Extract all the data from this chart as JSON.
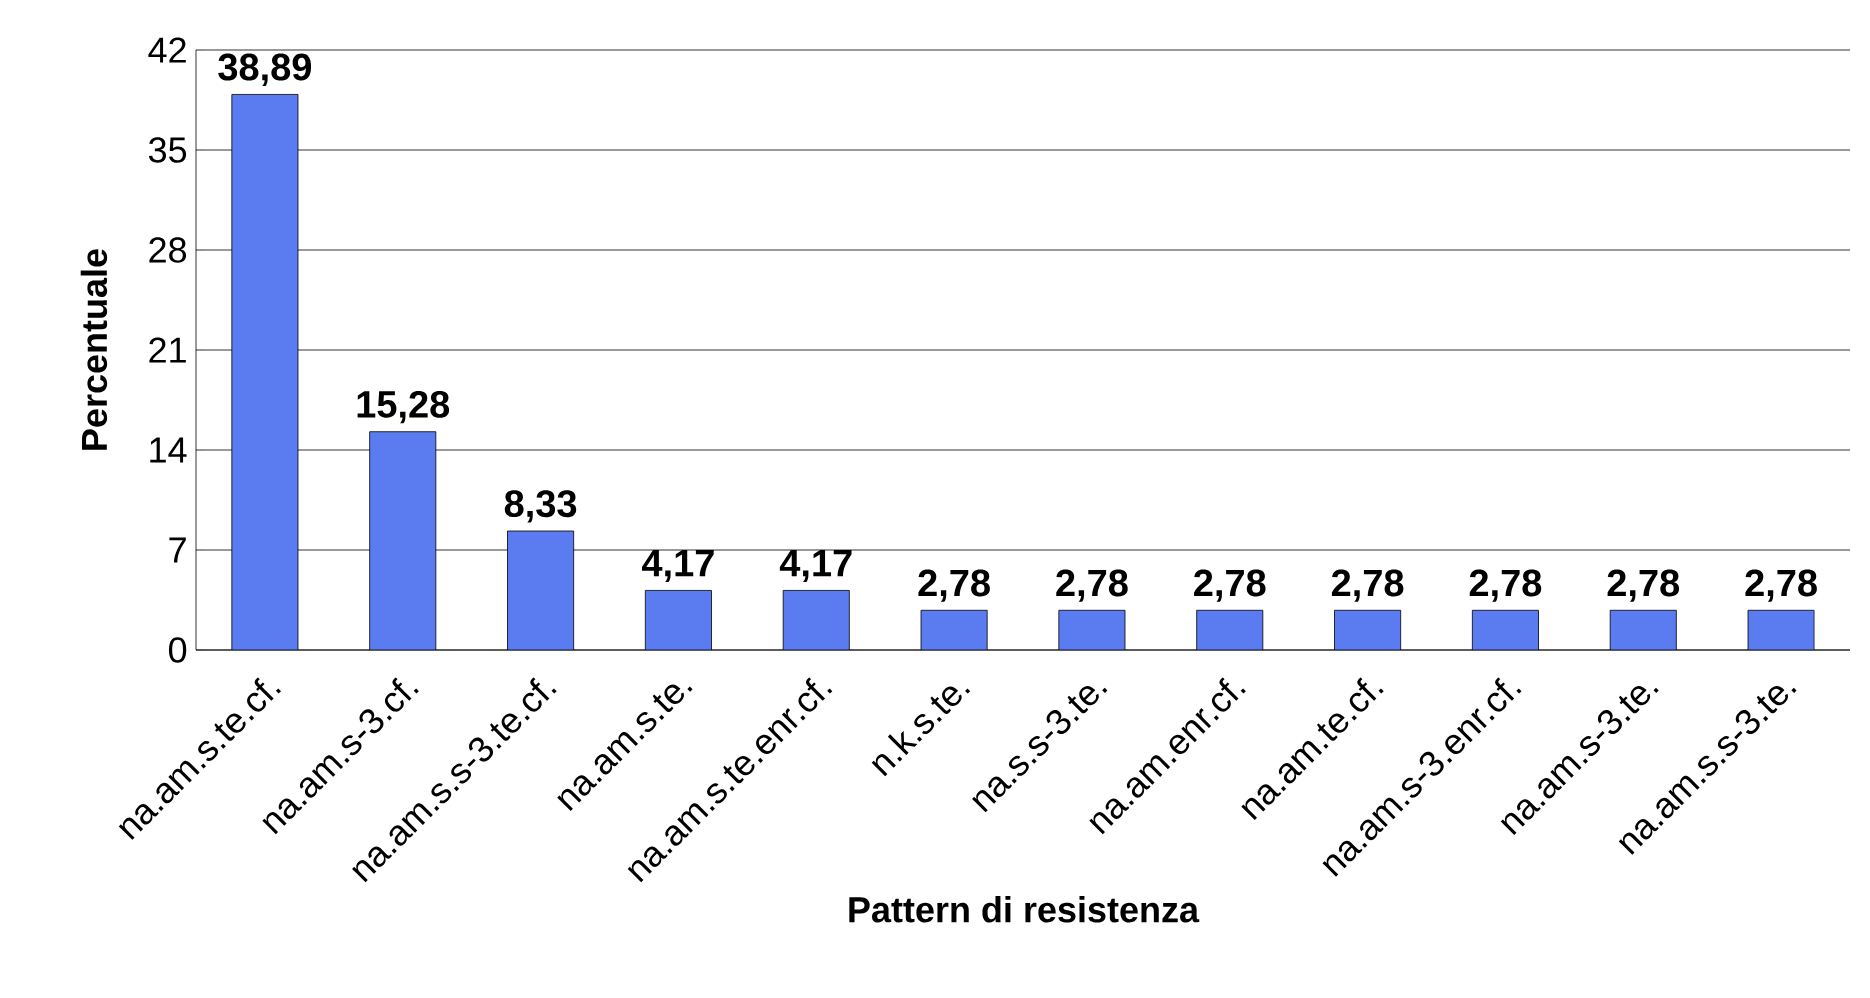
{
  "chart_data": {
    "type": "bar",
    "xlabel": "Pattern di resistenza",
    "ylabel": "Percentuale",
    "categories": [
      "na.am.s.te.cf.",
      "na.am.s-3.cf.",
      "na.am.s.s-3.te.cf.",
      "na.am.s.te.",
      "na.am.s.te.enr.cf.",
      "n.k.s.te.",
      "na.s.s-3.te.",
      "na.am.enr.cf.",
      "na.am.te.cf.",
      "na.am.s-3.enr.cf.",
      "na.am.s-3.te.",
      "na.am.s.s-3.te."
    ],
    "values": [
      38.89,
      15.28,
      8.33,
      4.17,
      4.17,
      2.78,
      2.78,
      2.78,
      2.78,
      2.78,
      2.78,
      2.78
    ],
    "value_labels": [
      "38,89",
      "15,28",
      "8,33",
      "4,17",
      "4,17",
      "2,78",
      "2,78",
      "2,78",
      "2,78",
      "2,78",
      "2,78",
      "2,78"
    ],
    "color": "#5b7cf0",
    "ylim": [
      0,
      42
    ],
    "yticks": [
      0,
      7,
      14,
      21,
      28,
      35,
      42
    ],
    "grid": "y"
  }
}
